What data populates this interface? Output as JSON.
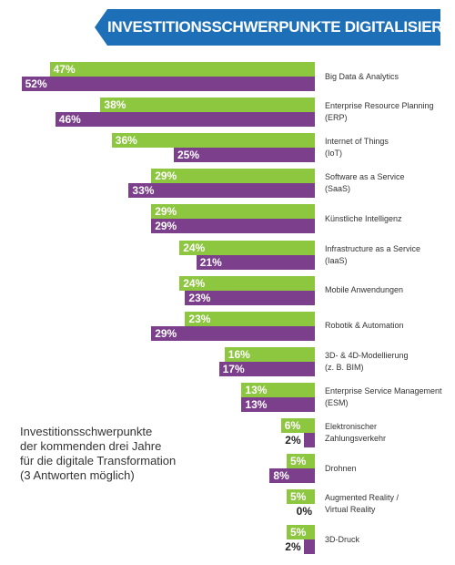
{
  "chart_data": {
    "type": "bar",
    "orientation": "horizontal-left",
    "title": "INVESTITIONSSCHWERPUNKTE DIGITALISIERUNG",
    "annotation": "Investitionsschwerpunkte\nder kommenden drei Jahre\nfür die digitale Transformation\n(3 Antworten möglich)",
    "categories": [
      "Big Data & Analytics",
      "Enterprise Resource Planning\n(ERP)",
      "Internet of Things\n(IoT)",
      "Software as a Service\n(SaaS)",
      "Künstliche Intelligenz",
      "Infrastructure as a Service\n(IaaS)",
      "Mobile Anwendungen",
      "Robotik & Automation",
      "3D- & 4D-Modellierung\n(z. B. BIM)",
      "Enterprise Service Management\n(ESM)",
      "Elektronischer\nZahlungsverkehr",
      "Drohnen",
      "Augmented Reality /\nVirtual Reality",
      "3D-Druck"
    ],
    "series": [
      {
        "color": "#8dc63f",
        "values": [
          47,
          38,
          36,
          29,
          29,
          24,
          24,
          23,
          16,
          13,
          6,
          5,
          5,
          5
        ],
        "value_labels": [
          "47%",
          "38%",
          "36%",
          "29%",
          "29%",
          "24%",
          "24%",
          "23%",
          "16%",
          "13%",
          "6%",
          "5%",
          "5%",
          "5%"
        ]
      },
      {
        "color": "#7b3f8c",
        "values": [
          52,
          46,
          25,
          33,
          29,
          21,
          23,
          29,
          17,
          13,
          2,
          8,
          0,
          2
        ],
        "value_labels": [
          "52%",
          "46%",
          "25%",
          "33%",
          "29%",
          "21%",
          "23%",
          "29%",
          "17%",
          "13%",
          "2%",
          "8%",
          "0%",
          "2%"
        ]
      }
    ]
  }
}
